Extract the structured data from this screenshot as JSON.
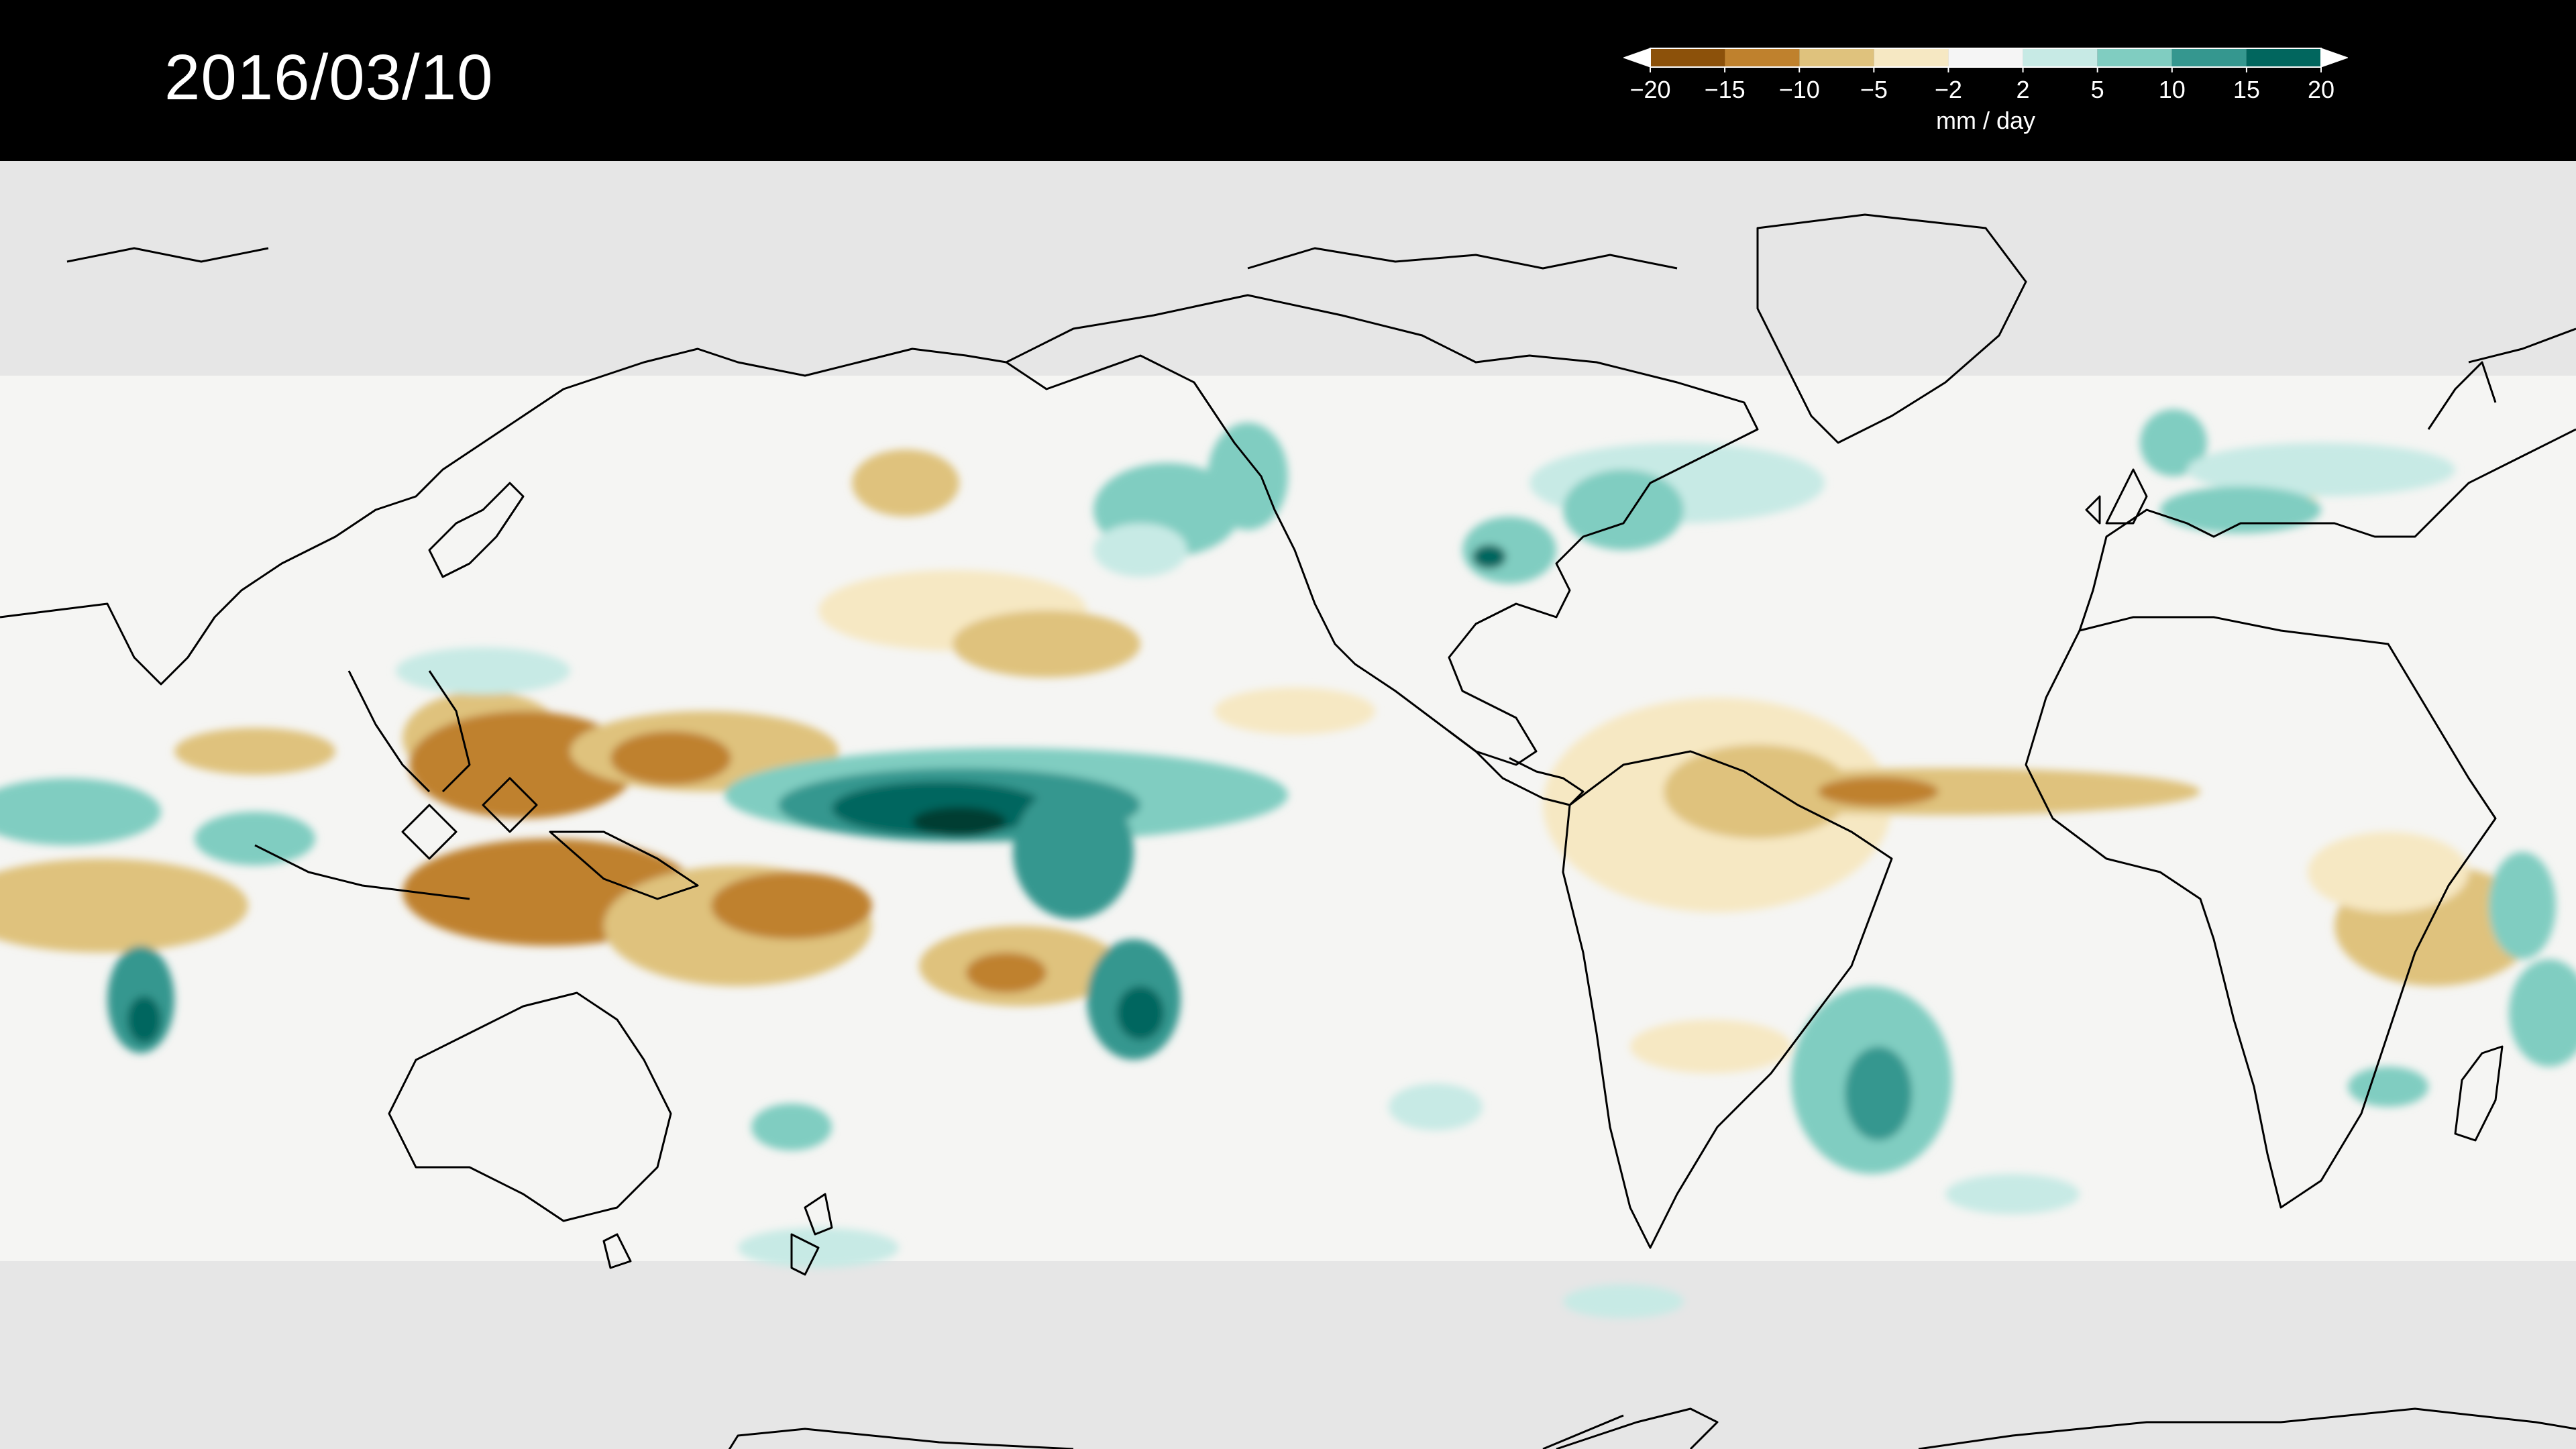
{
  "date": "2016/03/10",
  "legend": {
    "unit": "mm / day",
    "ticks": [
      "−20",
      "−15",
      "−10",
      "−5",
      "−2",
      "2",
      "5",
      "10",
      "15",
      "20"
    ],
    "colors": [
      "#543005",
      "#8c510a",
      "#bf812d",
      "#dfc27d",
      "#f6e8c3",
      "#f5f5f5",
      "#c7eae5",
      "#80cdc1",
      "#35978f",
      "#01665e",
      "#003c30"
    ],
    "extend": "both"
  },
  "map": {
    "ocean_color": "#f5f5f3",
    "polar_mask_color": "#e6e6e6",
    "coastline_color": "#000000"
  }
}
